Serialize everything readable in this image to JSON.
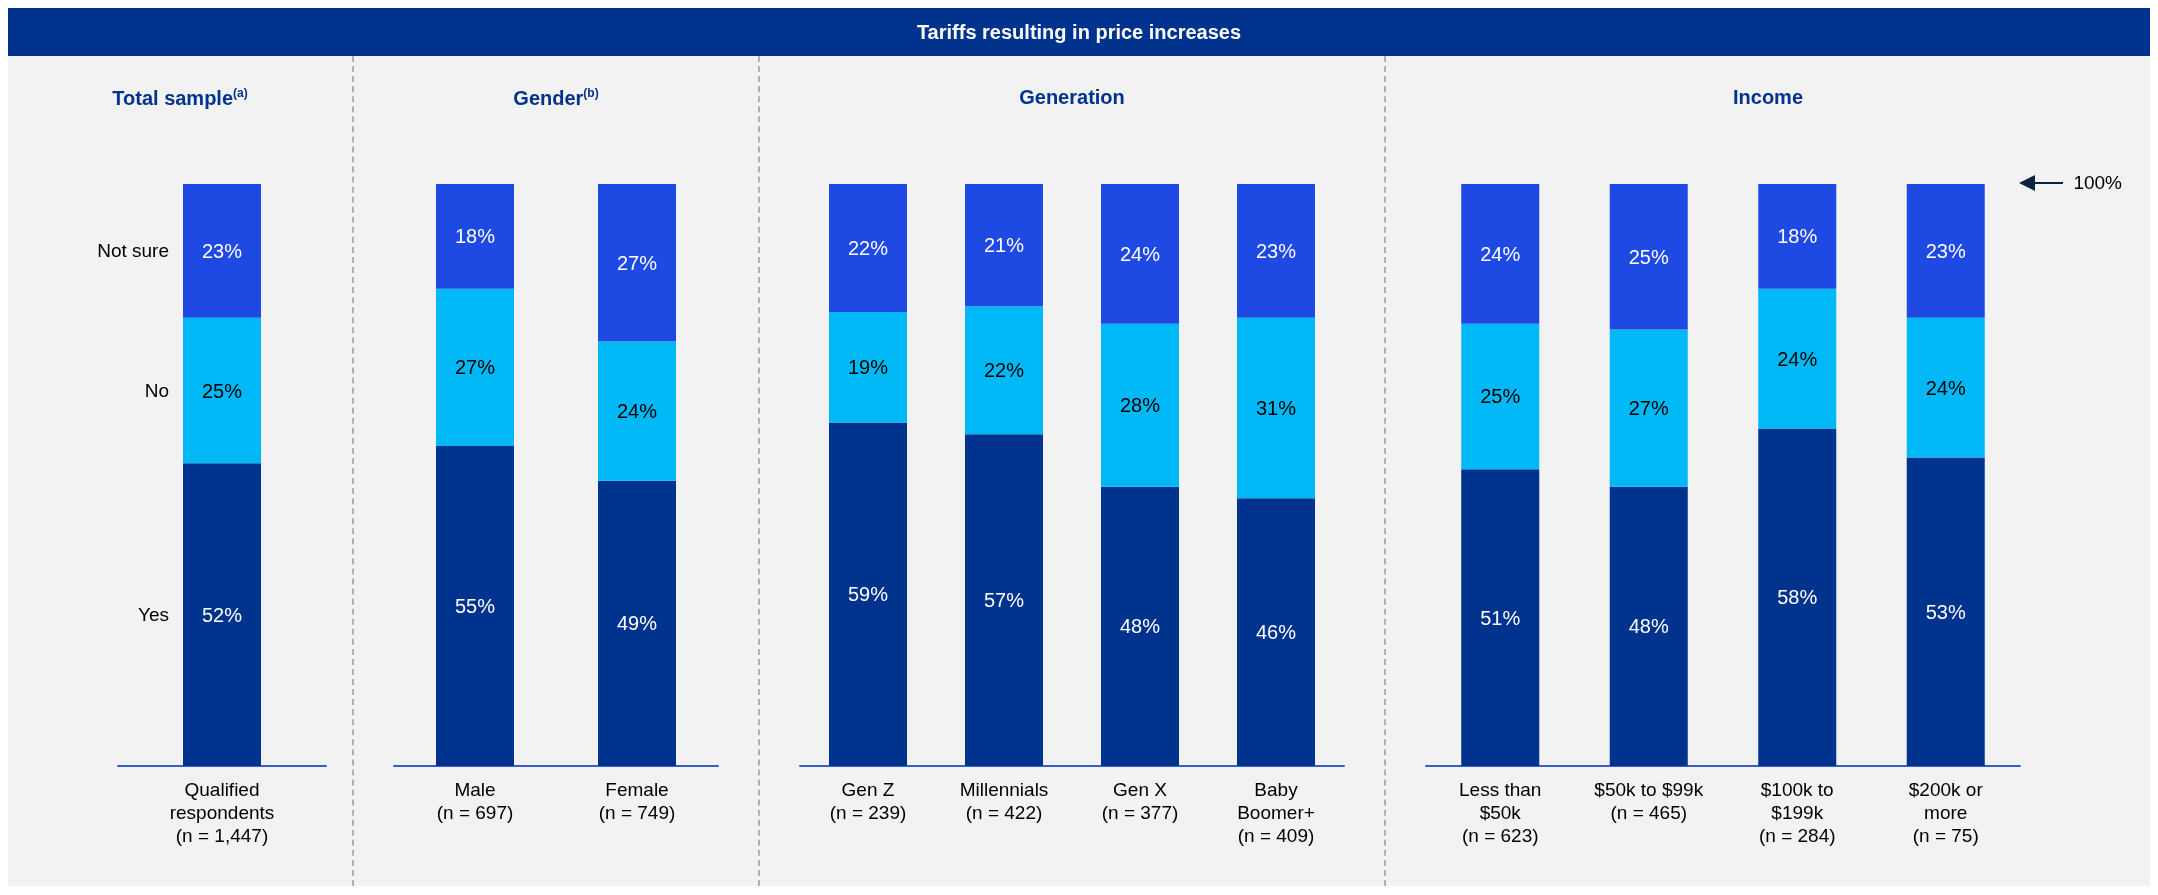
{
  "chart_data": [
    {
      "type": "bar",
      "title": "Total sample$^{(a)}$",
      "stacked": true,
      "annotations": [
        "Tariffs resulting in price increases"
      ],
      "categories": [
        "Qualified\nrespondents\n(n = 1,447)"
      ],
      "series": [
        {
          "name": "Yes",
          "color": "#00338d",
          "values": [
            52
          ],
          "value_labels": [
            "52%"
          ]
        },
        {
          "name": "No",
          "color": "#00b8f5",
          "values": [
            25
          ],
          "value_labels": [
            "25%"
          ]
        },
        {
          "name": "Not sure",
          "color": "#1e49e2",
          "values": [
            23
          ],
          "value_labels": [
            "23%"
          ]
        }
      ]
    },
    {
      "type": "bar",
      "title": "Gender$^{(b)}$",
      "stacked": true,
      "categories": [
        "Male\n(n = 697)",
        "Female\n(n = 749)"
      ],
      "series": [
        {
          "color": "#00338d",
          "values": [
            55,
            49
          ],
          "value_labels": [
            "55%",
            "49%"
          ]
        },
        {
          "color": "#00b8f5",
          "values": [
            27,
            24
          ],
          "value_labels": [
            "27%",
            "24%"
          ]
        },
        {
          "color": "#1e49e2",
          "values": [
            18,
            27
          ],
          "value_labels": [
            "18%",
            "27%"
          ]
        }
      ]
    },
    {
      "type": "bar",
      "title": "Generation",
      "stacked": true,
      "categories": [
        "Gen Z\n(n = 239)",
        "Millennials\n(n = 422)",
        "Gen X\n(n = 377)",
        "Baby\nBoomer+\n(n = 409)"
      ],
      "series": [
        {
          "color": "#00338d",
          "values": [
            59,
            57,
            48,
            46
          ],
          "value_labels": [
            "59%",
            "57%",
            "48%",
            "46%"
          ]
        },
        {
          "color": "#00b8f5",
          "values": [
            19,
            22,
            28,
            31
          ],
          "value_labels": [
            "19%",
            "22%",
            "28%",
            "31%"
          ]
        },
        {
          "color": "#1e49e2",
          "values": [
            22,
            21,
            24,
            23
          ],
          "value_labels": [
            "22%",
            "21%",
            "24%",
            "23%"
          ]
        }
      ]
    },
    {
      "type": "bar",
      "title": "Income",
      "stacked": true,
      "annotations": [
        "100%"
      ],
      "categories": [
        "Less than\n$50k\n(n = 623)",
        "$50k to $99k\n(n = 465)",
        "$100k to\n$199k\n(n = 284)",
        "$200k or\nmore\n(n = 75)"
      ],
      "series": [
        {
          "color": "#00338d",
          "values": [
            51,
            48,
            58,
            53
          ],
          "value_labels": [
            "51%",
            "48%",
            "58%",
            "53%"
          ]
        },
        {
          "color": "#00b8f5",
          "values": [
            25,
            27,
            24,
            24
          ],
          "value_labels": [
            "25%",
            "27%",
            "24%",
            "24%"
          ]
        },
        {
          "color": "#1e49e2",
          "values": [
            24,
            25,
            18,
            23
          ],
          "value_labels": [
            "24%",
            "25%",
            "18%",
            "23%"
          ]
        }
      ]
    }
  ]
}
